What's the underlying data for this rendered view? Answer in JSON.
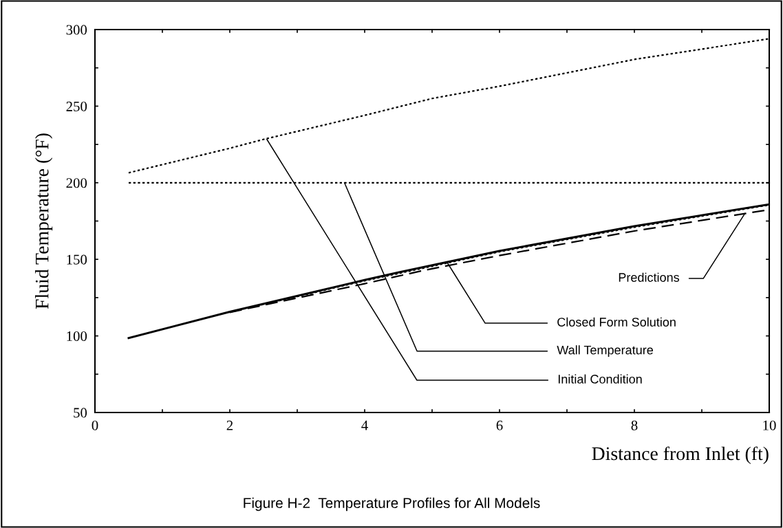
{
  "chart_data": {
    "type": "line",
    "title": "Figure H-2  Temperature Profiles for All Models",
    "xlabel": "Distance from Inlet (ft)",
    "ylabel": "Fluid Temperature (°F)",
    "xlim": [
      0,
      10
    ],
    "ylim": [
      50,
      300
    ],
    "xticks": [
      0,
      {
        "value": 1,
        "label": null
      },
      2,
      {
        "value": 3,
        "label": null
      },
      4,
      {
        "value": 5,
        "label": null
      },
      6,
      {
        "value": 7,
        "label": null
      },
      8,
      {
        "value": 9,
        "label": null
      },
      10
    ],
    "yticks": [
      50,
      {
        "value": 75,
        "label": null
      },
      100,
      {
        "value": 125,
        "label": null
      },
      150,
      {
        "value": 175,
        "label": null
      },
      200,
      {
        "value": 225,
        "label": null
      },
      250,
      {
        "value": 275,
        "label": null
      },
      300
    ],
    "grid": false,
    "series": [
      {
        "color": "#000000",
        "line_style": "dotted",
        "x": [
          0.5,
          2,
          2.5,
          4,
          5,
          6,
          8,
          10
        ],
        "values": [
          206.5,
          222.5,
          228.3,
          244,
          255,
          263,
          280.5,
          294
        ]
      },
      {
        "color": "#000000",
        "line_style": "dotted",
        "x": [
          0.5,
          10
        ],
        "values": [
          200,
          200
        ]
      },
      {
        "color": "#000000",
        "line_style": "solid",
        "x": [
          0.5,
          2,
          4,
          4.5,
          6,
          8,
          10
        ],
        "values": [
          98.6,
          115.8,
          136.5,
          141.5,
          155.5,
          171.6,
          185.9
        ]
      },
      {
        "color": "#000000",
        "line_style": "dotted",
        "x": [
          2,
          4,
          6,
          8,
          10
        ],
        "values": [
          115.5,
          136,
          155,
          171,
          185.5
        ]
      },
      {
        "color": "#000000",
        "line_style": "dashed",
        "x": [
          2,
          4,
          4.9,
          6,
          8,
          10
        ],
        "values": [
          115.4,
          134.1,
          143,
          152.5,
          168.5,
          182.4
        ]
      }
    ],
    "annotations": [
      {
        "text": "Predictions",
        "x": 9.64,
        "y": 180
      },
      {
        "text": "Closed Form Solution",
        "x": 5.23,
        "y": 147.5
      },
      {
        "text": "Wall Temperature",
        "x": 3.7,
        "y": 200
      },
      {
        "text": "Initial Condition",
        "x": 2.55,
        "y": 228.3
      }
    ]
  }
}
